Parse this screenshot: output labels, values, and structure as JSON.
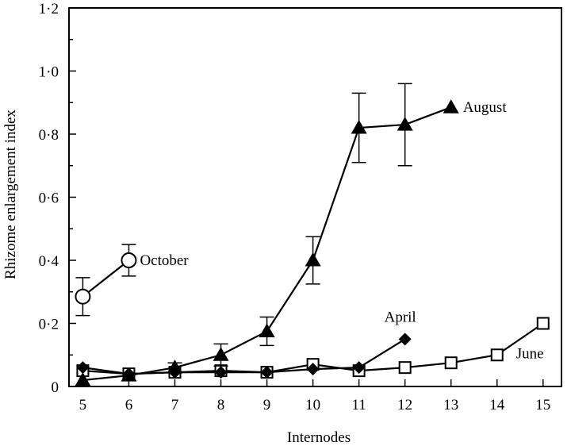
{
  "chart_data": {
    "type": "line",
    "title": "",
    "xlabel": "Internodes",
    "ylabel": "Rhizome enlargement index",
    "xlim": [
      4.7,
      15.4
    ],
    "ylim": [
      0,
      1.2
    ],
    "x_ticks": [
      5,
      6,
      7,
      8,
      9,
      10,
      11,
      12,
      13,
      14,
      15
    ],
    "x_tick_labels": [
      "5",
      "6",
      "7",
      "8",
      "9",
      "10",
      "11",
      "12",
      "13",
      "14",
      "15"
    ],
    "y_ticks": [
      0,
      0.2,
      0.4,
      0.6,
      0.8,
      1.0,
      1.2
    ],
    "y_tick_labels": [
      "0",
      "0·2",
      "0·4",
      "0·6",
      "0·8",
      "1·0",
      "1·2"
    ],
    "grid": false,
    "legend": "none",
    "series": [
      {
        "name": "October",
        "marker": "open-circle",
        "x": [
          5,
          6
        ],
        "y": [
          0.285,
          0.4
        ],
        "error": [
          0.06,
          0.05
        ]
      },
      {
        "name": "August",
        "marker": "filled-triangle",
        "x": [
          5,
          6,
          7,
          8,
          9,
          10,
          11,
          12,
          13
        ],
        "y": [
          0.02,
          0.035,
          0.06,
          0.1,
          0.175,
          0.4,
          0.82,
          0.83,
          0.885
        ],
        "error": [
          0,
          0,
          0.015,
          0.035,
          0.045,
          0.075,
          0.11,
          0.13,
          0
        ]
      },
      {
        "name": "April",
        "marker": "filled-diamond",
        "x": [
          5,
          6,
          7,
          8,
          9,
          10,
          11,
          12
        ],
        "y": [
          0.06,
          0.04,
          0.045,
          0.045,
          0.045,
          0.055,
          0.06,
          0.15
        ],
        "error": [
          0,
          0,
          0,
          0,
          0,
          0,
          0,
          0
        ]
      },
      {
        "name": "June",
        "marker": "open-square",
        "x": [
          5,
          6,
          7,
          8,
          9,
          10,
          11,
          12,
          13,
          14,
          15
        ],
        "y": [
          0.05,
          0.04,
          0.045,
          0.05,
          0.045,
          0.07,
          0.05,
          0.06,
          0.075,
          0.1,
          0.2
        ],
        "error": [
          0,
          0,
          0,
          0,
          0,
          0,
          0,
          0,
          0,
          0,
          0
        ]
      }
    ]
  }
}
